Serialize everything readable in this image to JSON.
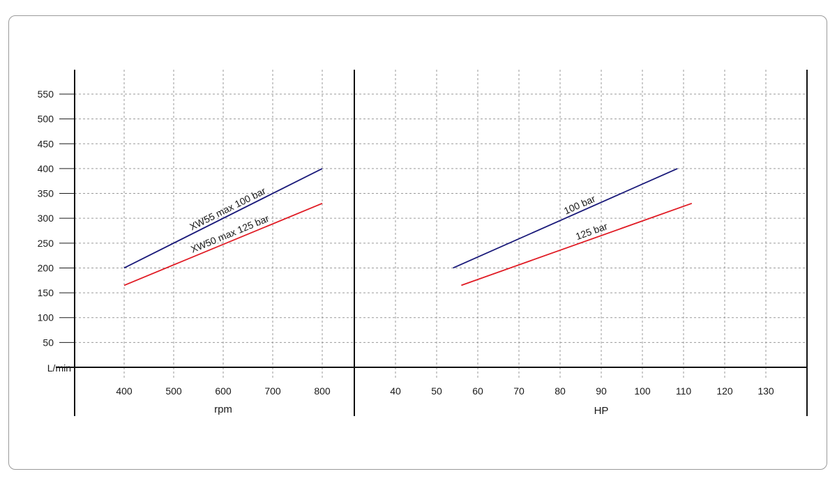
{
  "chart_data": [
    {
      "type": "line",
      "y_unit_label": "L/min",
      "xlabel": "rpm",
      "ylim": [
        0,
        550
      ],
      "xlim": [
        400,
        800
      ],
      "y_ticks": [
        50,
        100,
        150,
        200,
        250,
        300,
        350,
        400,
        450,
        500,
        550
      ],
      "x_ticks": [
        400,
        500,
        600,
        700,
        800
      ],
      "grid": true,
      "series": [
        {
          "name": "XW55 max 100 bar",
          "color": "#1a1a7a",
          "x": [
            400,
            800
          ],
          "y": [
            200,
            400
          ]
        },
        {
          "name": "XW50 max 125 bar",
          "color": "#e01b24",
          "x": [
            400,
            800
          ],
          "y": [
            165,
            330
          ]
        }
      ]
    },
    {
      "type": "line",
      "xlabel": "HP",
      "ylim": [
        0,
        550
      ],
      "xlim": [
        40,
        130
      ],
      "x_ticks": [
        40,
        50,
        60,
        70,
        80,
        90,
        100,
        110,
        120,
        130
      ],
      "grid": true,
      "series": [
        {
          "name": "100 bar",
          "color": "#1a1a7a",
          "x": [
            54,
            108.5
          ],
          "y": [
            200,
            400
          ]
        },
        {
          "name": "125 bar",
          "color": "#e01b24",
          "x": [
            56,
            112
          ],
          "y": [
            165,
            330
          ]
        }
      ]
    }
  ]
}
